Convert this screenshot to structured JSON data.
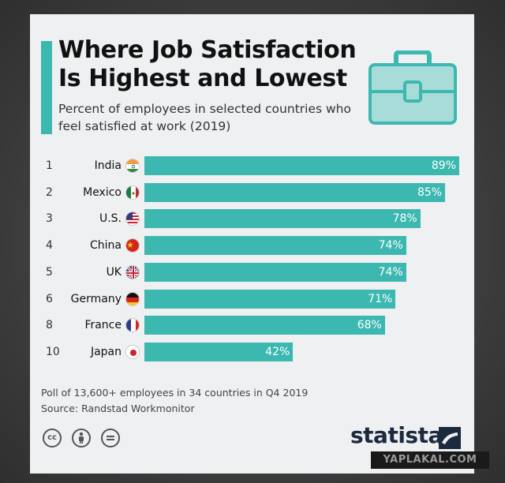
{
  "title": "Where Job Satisfaction Is Highest and Lowest",
  "subtitle": "Percent of employees in selected countries who feel satisfied at work (2019)",
  "footnote": {
    "line1": "Poll of 13,600+ employees in 34 countries in Q4 2019",
    "line2": "Source: Randstad Workmonitor"
  },
  "brand": "statista",
  "watermark": "YAPLAKAL.COM",
  "colors": {
    "bar": "#3cb8b0",
    "accent": "#3cb8b0",
    "brand": "#1c2a3f"
  },
  "icons": [
    "briefcase-icon",
    "cc-icon",
    "by-icon",
    "nd-icon",
    "statista-logo-icon"
  ],
  "chart_data": {
    "type": "bar",
    "orientation": "horizontal",
    "title": "Where Job Satisfaction Is Highest and Lowest",
    "subtitle": "Percent of employees in selected countries who feel satisfied at work (2019)",
    "xlim": [
      0,
      100
    ],
    "rows": [
      {
        "rank": "1",
        "country": "India",
        "flag": "india-flag-icon",
        "value": 89,
        "label": "89%"
      },
      {
        "rank": "2",
        "country": "Mexico",
        "flag": "mexico-flag-icon",
        "value": 85,
        "label": "85%"
      },
      {
        "rank": "3",
        "country": "U.S.",
        "flag": "us-flag-icon",
        "value": 78,
        "label": "78%"
      },
      {
        "rank": "4",
        "country": "China",
        "flag": "china-flag-icon",
        "value": 74,
        "label": "74%"
      },
      {
        "rank": "5",
        "country": "UK",
        "flag": "uk-flag-icon",
        "value": 74,
        "label": "74%"
      },
      {
        "rank": "6",
        "country": "Germany",
        "flag": "germany-flag-icon",
        "value": 71,
        "label": "71%"
      },
      {
        "rank": "8",
        "country": "France",
        "flag": "france-flag-icon",
        "value": 68,
        "label": "68%"
      },
      {
        "rank": "10",
        "country": "Japan",
        "flag": "japan-flag-icon",
        "value": 42,
        "label": "42%"
      }
    ],
    "categories": [
      "India",
      "Mexico",
      "U.S.",
      "China",
      "UK",
      "Germany",
      "France",
      "Japan"
    ],
    "values": [
      89,
      85,
      78,
      74,
      74,
      71,
      68,
      42
    ],
    "legend": "none",
    "grid": false
  }
}
